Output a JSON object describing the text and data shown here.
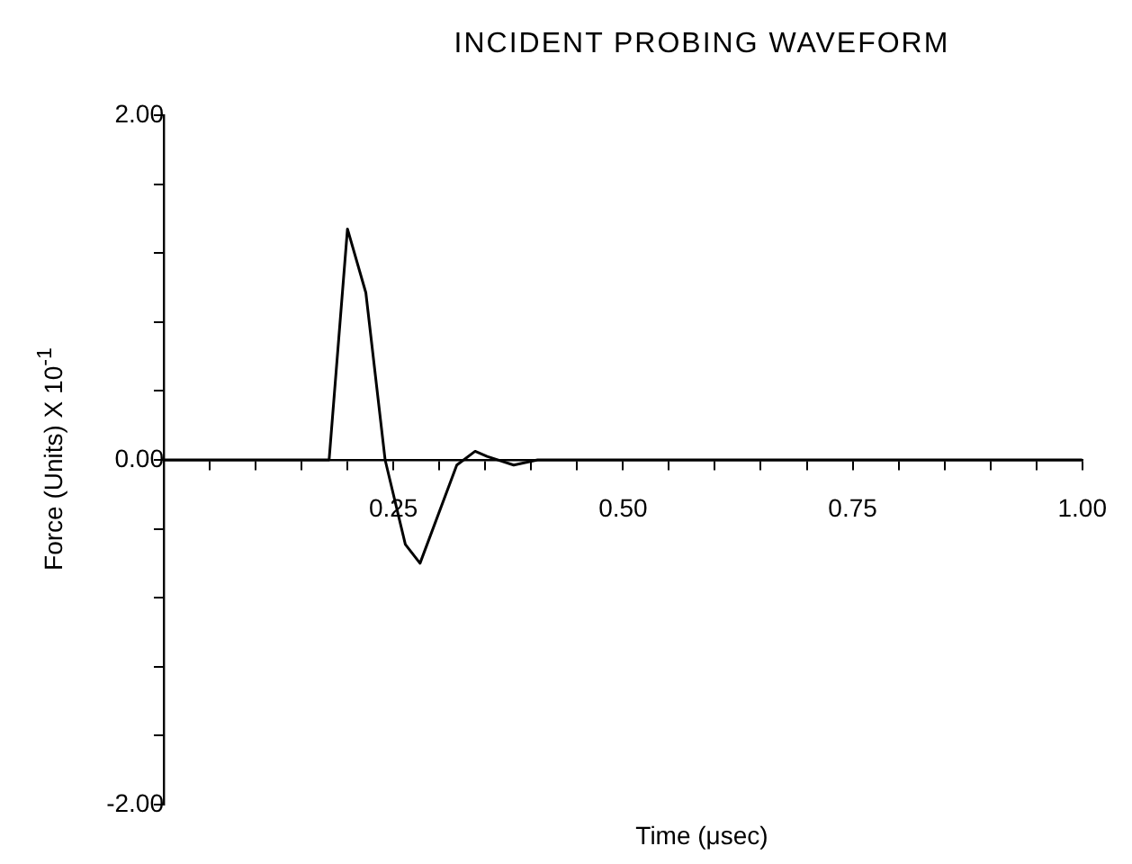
{
  "chart_data": {
    "type": "line",
    "title": "INCIDENT PROBING WAVEFORM",
    "xlabel": "Time  (μsec)",
    "ylabel": "Force  (Units)  X 10$^{-1}$",
    "x": [
      0,
      0.05,
      0.1,
      0.15,
      0.18,
      0.2,
      0.22,
      0.241,
      0.263,
      0.279,
      0.319,
      0.339,
      0.352,
      0.381,
      0.407,
      0.5,
      0.6,
      0.7,
      0.8,
      0.9,
      1.0
    ],
    "series": [
      {
        "color": "#000000",
        "values": [
          0,
          0,
          0,
          0,
          0,
          1.34,
          0.97,
          0,
          -0.49,
          -0.6,
          -0.03,
          0.05,
          0.02,
          -0.03,
          0,
          0,
          0,
          0,
          0,
          0,
          0
        ]
      }
    ],
    "xlim": [
      0,
      1
    ],
    "ylim": [
      -2,
      2
    ],
    "xticks": [
      {
        "value": 0,
        "label": null
      },
      {
        "value": 0.05,
        "label": null
      },
      {
        "value": 0.1,
        "label": null
      },
      {
        "value": 0.15,
        "label": null
      },
      {
        "value": 0.2,
        "label": null
      },
      {
        "value": 0.25,
        "label": "0.25"
      },
      {
        "value": 0.3,
        "label": null
      },
      {
        "value": 0.35,
        "label": null
      },
      {
        "value": 0.4,
        "label": null
      },
      {
        "value": 0.45,
        "label": null
      },
      {
        "value": 0.5,
        "label": "0.50"
      },
      {
        "value": 0.55,
        "label": null
      },
      {
        "value": 0.6,
        "label": null
      },
      {
        "value": 0.65,
        "label": null
      },
      {
        "value": 0.7,
        "label": null
      },
      {
        "value": 0.75,
        "label": "0.75"
      },
      {
        "value": 0.8,
        "label": null
      },
      {
        "value": 0.85,
        "label": null
      },
      {
        "value": 0.9,
        "label": null
      },
      {
        "value": 0.95,
        "label": null
      },
      {
        "value": 1,
        "label": "1.00"
      }
    ],
    "yticks": [
      {
        "value": -2,
        "label": "-2.00"
      },
      {
        "value": -1.6,
        "label": null
      },
      {
        "value": -1.2,
        "label": null
      },
      {
        "value": -0.8,
        "label": null
      },
      {
        "value": -0.4,
        "label": null
      },
      {
        "value": 0,
        "label": "0.00"
      },
      {
        "value": 0.4,
        "label": null
      },
      {
        "value": 0.8,
        "label": null
      },
      {
        "value": 1.2,
        "label": null
      },
      {
        "value": 1.6,
        "label": null
      },
      {
        "value": 2,
        "label": "2.00"
      }
    ],
    "grid": false,
    "legend": false,
    "marker": "none",
    "line_style": "solid"
  }
}
